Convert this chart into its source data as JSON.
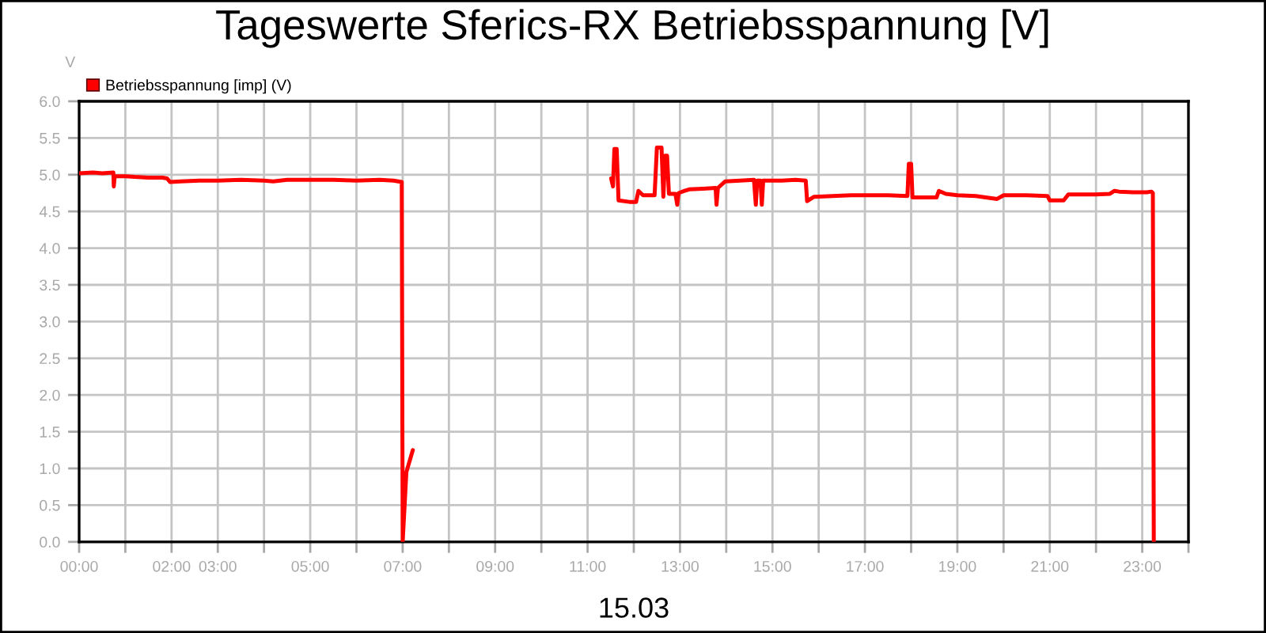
{
  "chart_data": {
    "type": "line",
    "title": "Tageswerte Sferics-RX Betriebsspannung [V]",
    "xlabel": "15.03",
    "ylabel": "V",
    "series": [
      {
        "name": "Betriebsspannung [imp] (V)",
        "color": "#ff0000",
        "x": [
          0.0,
          0.3,
          0.5,
          0.74,
          0.75,
          0.77,
          1.0,
          1.2,
          1.5,
          1.8,
          1.9,
          1.97,
          2.2,
          2.6,
          3.0,
          3.5,
          4.0,
          4.2,
          4.5,
          5.0,
          5.5,
          6.0,
          6.5,
          6.8,
          6.98,
          7.0,
          7.08,
          7.22,
          9.0,
          11.51,
          11.55,
          11.58,
          11.63,
          11.67,
          11.9,
          12.05,
          12.1,
          12.2,
          12.45,
          12.5,
          12.6,
          12.64,
          12.68,
          12.72,
          12.76,
          12.9,
          12.94,
          12.97,
          13.1,
          13.2,
          13.5,
          13.77,
          13.79,
          13.82,
          13.98,
          14.3,
          14.6,
          14.64,
          14.67,
          14.74,
          14.77,
          14.8,
          15.2,
          15.5,
          15.72,
          15.75,
          15.9,
          16.3,
          16.7,
          17.0,
          17.5,
          17.92,
          17.95,
          18.0,
          18.03,
          18.3,
          18.55,
          18.6,
          18.75,
          19.0,
          19.4,
          19.86,
          20.0,
          20.5,
          20.95,
          21.0,
          21.3,
          21.4,
          22.0,
          22.3,
          22.4,
          22.5,
          22.8,
          23.1,
          23.2,
          23.23,
          23.25
        ],
        "values": [
          5.02,
          5.03,
          5.02,
          5.03,
          4.84,
          4.98,
          4.98,
          4.97,
          4.96,
          4.96,
          4.95,
          4.9,
          4.91,
          4.92,
          4.92,
          4.93,
          4.92,
          4.91,
          4.93,
          4.93,
          4.93,
          4.92,
          4.93,
          4.92,
          4.9,
          0.0,
          0.95,
          1.25,
          null,
          4.95,
          4.84,
          5.35,
          5.35,
          4.65,
          4.63,
          4.63,
          4.78,
          4.72,
          4.72,
          5.37,
          5.37,
          4.7,
          5.26,
          5.26,
          4.74,
          4.74,
          4.59,
          4.75,
          4.78,
          4.8,
          4.81,
          4.82,
          4.59,
          4.82,
          4.91,
          4.92,
          4.93,
          4.59,
          4.92,
          4.92,
          4.59,
          4.92,
          4.92,
          4.93,
          4.92,
          4.64,
          4.7,
          4.71,
          4.72,
          4.72,
          4.72,
          4.71,
          5.15,
          5.15,
          4.69,
          4.69,
          4.69,
          4.78,
          4.74,
          4.72,
          4.71,
          4.67,
          4.72,
          4.72,
          4.71,
          4.65,
          4.65,
          4.73,
          4.73,
          4.74,
          4.78,
          4.77,
          4.76,
          4.76,
          4.77,
          4.75,
          0.0
        ]
      }
    ],
    "xlim": [
      0,
      24
    ],
    "xticks": [
      {
        "value": 0,
        "label": "00:00"
      },
      {
        "value": 1,
        "label": null
      },
      {
        "value": 2,
        "label": "02:00"
      },
      {
        "value": 3,
        "label": "03:00"
      },
      {
        "value": 4,
        "label": null
      },
      {
        "value": 5,
        "label": "05:00"
      },
      {
        "value": 6,
        "label": null
      },
      {
        "value": 7,
        "label": "07:00"
      },
      {
        "value": 8,
        "label": null
      },
      {
        "value": 9,
        "label": "09:00"
      },
      {
        "value": 10,
        "label": null
      },
      {
        "value": 11,
        "label": "11:00"
      },
      {
        "value": 12,
        "label": null
      },
      {
        "value": 13,
        "label": "13:00"
      },
      {
        "value": 14,
        "label": null
      },
      {
        "value": 15,
        "label": "15:00"
      },
      {
        "value": 16,
        "label": null
      },
      {
        "value": 17,
        "label": "17:00"
      },
      {
        "value": 18,
        "label": null
      },
      {
        "value": 19,
        "label": "19:00"
      },
      {
        "value": 20,
        "label": null
      },
      {
        "value": 21,
        "label": "21:00"
      },
      {
        "value": 22,
        "label": null
      },
      {
        "value": 23,
        "label": "23:00"
      },
      {
        "value": 24,
        "label": null
      }
    ],
    "ylim": [
      0,
      6
    ],
    "yticks": [
      {
        "value": 0,
        "label": "0.0"
      },
      0.5,
      {
        "value": 1,
        "label": "1.0"
      },
      1.5,
      {
        "value": 2,
        "label": "2.0"
      },
      2.5,
      {
        "value": 3,
        "label": "3.0"
      },
      3.5,
      {
        "value": 4,
        "label": "4.0"
      },
      4.5,
      {
        "value": 5,
        "label": "5.0"
      },
      5.5,
      {
        "value": 6,
        "label": "6.0"
      }
    ],
    "grid": true,
    "legend": "top left",
    "line_style": "solid",
    "marker": "none"
  }
}
